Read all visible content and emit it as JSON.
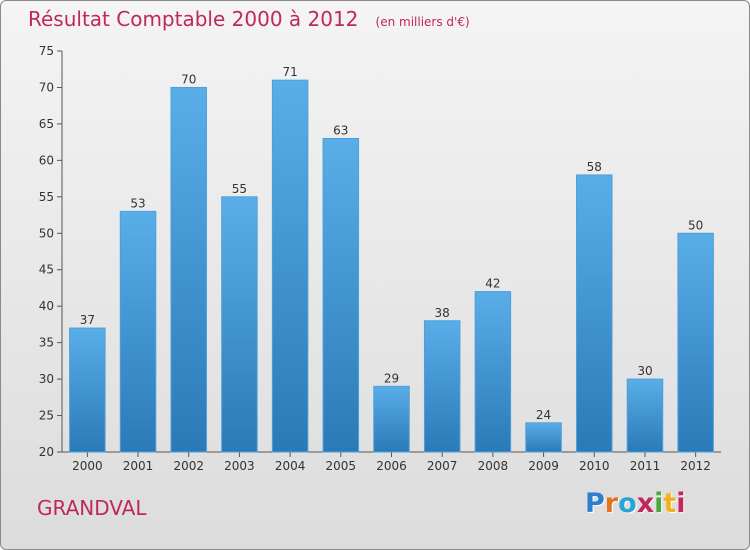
{
  "title": "Résultat Comptable 2000 à 2012",
  "subtitle": "(en milliers d'€)",
  "commune": "GRANDVAL",
  "logo": {
    "text": "Proxiti",
    "colors": [
      "#2d7fd0",
      "#e2731f",
      "#2aa3d9",
      "#c0275a",
      "#49a83b",
      "#f2b21e",
      "#c0275a"
    ]
  },
  "colors": {
    "bar_top": "#5aaee8",
    "bar_bottom": "#2a7ab8",
    "title": "#c0275a"
  },
  "chart_data": {
    "type": "bar",
    "categories": [
      "2000",
      "2001",
      "2002",
      "2003",
      "2004",
      "2005",
      "2006",
      "2007",
      "2008",
      "2009",
      "2010",
      "2011",
      "2012"
    ],
    "values": [
      37,
      53,
      70,
      55,
      71,
      63,
      29,
      38,
      42,
      24,
      58,
      30,
      50
    ],
    "title": "Résultat Comptable 2000 à 2012",
    "xlabel": "",
    "ylabel": "",
    "ylim": [
      20,
      75
    ],
    "yticks": [
      20,
      25,
      30,
      35,
      40,
      45,
      50,
      55,
      60,
      65,
      70,
      75
    ],
    "grid": false
  }
}
